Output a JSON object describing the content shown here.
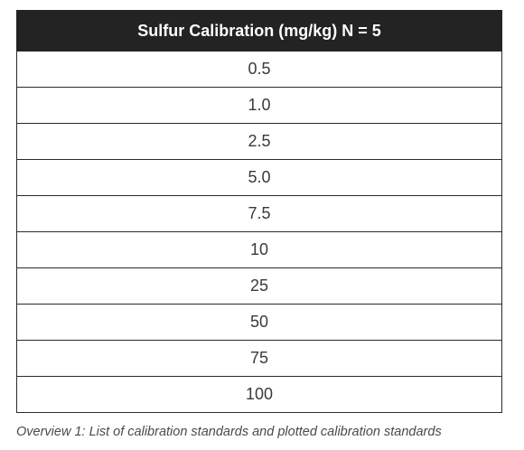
{
  "table": {
    "header": "Sulfur Calibration (mg/kg) N = 5",
    "rows": [
      "0.5",
      "1.0",
      "2.5",
      "5.0",
      "7.5",
      "10",
      "25",
      "50",
      "75",
      "100"
    ]
  },
  "caption": "Overview 1: List of calibration standards and plotted calibration standards"
}
